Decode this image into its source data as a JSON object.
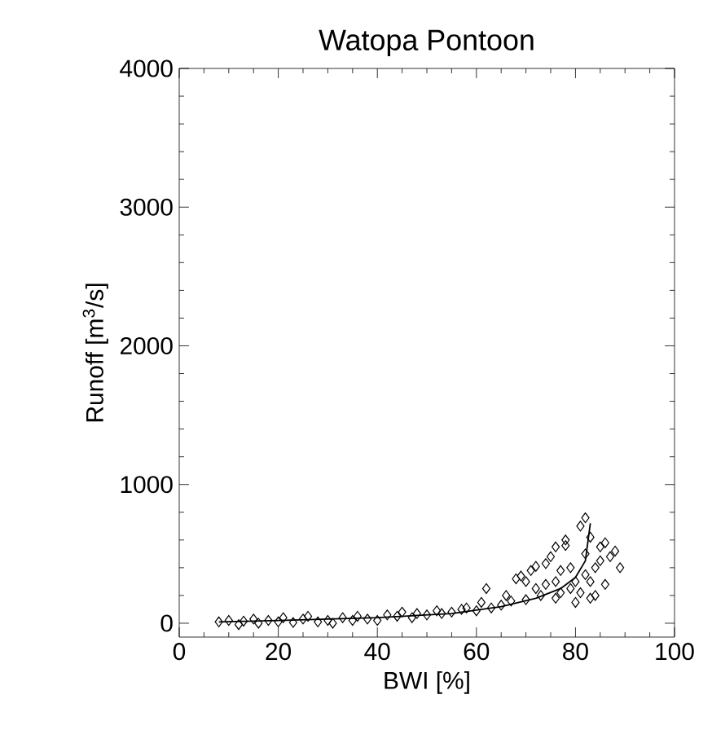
{
  "chart_data": {
    "type": "scatter",
    "title": "Watopa Pontoon",
    "xlabel": "BWI [%]",
    "ylabel": "Runoff [m$^{3}$/s]",
    "xlim": [
      0,
      100
    ],
    "xticks": [
      0,
      20,
      40,
      60,
      80,
      100
    ],
    "ylim": [
      -100,
      4000
    ],
    "yticks": [
      0,
      1000,
      2000,
      3000,
      4000
    ],
    "grid": false,
    "marker": "diamond",
    "series": [
      {
        "color": "#000000",
        "x": [
          8,
          10,
          12,
          13,
          15,
          16,
          18,
          20,
          21,
          23,
          25,
          26,
          28,
          30,
          31,
          33,
          35,
          36,
          38,
          40,
          42,
          44,
          45,
          47,
          48,
          50,
          52,
          53,
          55,
          57,
          58,
          60,
          61,
          62,
          63,
          65,
          66,
          67,
          68,
          69,
          70,
          71,
          72,
          73,
          74,
          74,
          75,
          76,
          76,
          77,
          78,
          78,
          79,
          79,
          80,
          80,
          81,
          81,
          82,
          82,
          82,
          83,
          83,
          83,
          84,
          84,
          85,
          85,
          86,
          86,
          87,
          88,
          89,
          76,
          77,
          70,
          72
        ],
        "values": [
          10,
          20,
          -10,
          15,
          30,
          0,
          20,
          10,
          40,
          5,
          30,
          50,
          10,
          20,
          0,
          40,
          20,
          50,
          30,
          20,
          60,
          50,
          80,
          40,
          70,
          60,
          90,
          70,
          80,
          100,
          110,
          90,
          150,
          250,
          110,
          130,
          200,
          160,
          320,
          340,
          170,
          380,
          250,
          200,
          430,
          280,
          480,
          300,
          180,
          220,
          560,
          600,
          250,
          400,
          150,
          300,
          700,
          220,
          760,
          500,
          350,
          620,
          180,
          300,
          400,
          200,
          550,
          450,
          580,
          280,
          480,
          520,
          400,
          550,
          380,
          300,
          410
        ]
      },
      {
        "type": "line",
        "color": "#000000",
        "marker": "none",
        "x": [
          8,
          20,
          40,
          55,
          65,
          72,
          77,
          80,
          82,
          83
        ],
        "values": [
          10,
          20,
          40,
          70,
          120,
          180,
          250,
          330,
          450,
          720
        ]
      }
    ]
  }
}
